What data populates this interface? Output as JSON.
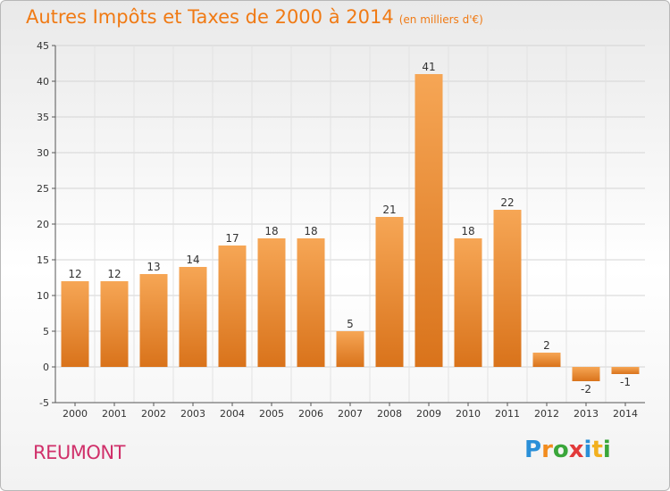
{
  "title": "Autres Impôts et Taxes de 2000 à 2014",
  "subtitle": "(en milliers d'€)",
  "commune": "REUMONT",
  "logo": {
    "letters": [
      "P",
      "r",
      "o",
      "x",
      "i",
      "t",
      "i"
    ],
    "colors": [
      "#2a8fd8",
      "#f28c1e",
      "#3aa63a",
      "#e23a3a",
      "#2a8fd8",
      "#f2b01e",
      "#3aa63a"
    ]
  },
  "colors": {
    "bar_top": "#f6a655",
    "bar_bottom": "#d9731b",
    "title": "#f07a14",
    "commune": "#d0306a"
  },
  "chart_data": {
    "type": "bar",
    "categories": [
      "2000",
      "2001",
      "2002",
      "2003",
      "2004",
      "2005",
      "2006",
      "2007",
      "2008",
      "2009",
      "2010",
      "2011",
      "2012",
      "2013",
      "2014"
    ],
    "values": [
      12,
      12,
      13,
      14,
      17,
      18,
      18,
      5,
      21,
      41,
      18,
      22,
      2,
      -2,
      -1
    ],
    "data_labels": [
      "12",
      "12",
      "13",
      "14",
      "17",
      "18",
      "18",
      "5",
      "21",
      "41",
      "18",
      "22",
      "2",
      "-2",
      "-1"
    ],
    "yticks": [
      "-5",
      "0",
      "5",
      "10",
      "15",
      "20",
      "25",
      "30",
      "35",
      "40",
      "45"
    ],
    "title": "Autres Impôts et Taxes de 2000 à 2014",
    "subtitle": "(en milliers d'€)",
    "ylim": [
      -5,
      45
    ],
    "grid": true,
    "legend": "none"
  }
}
